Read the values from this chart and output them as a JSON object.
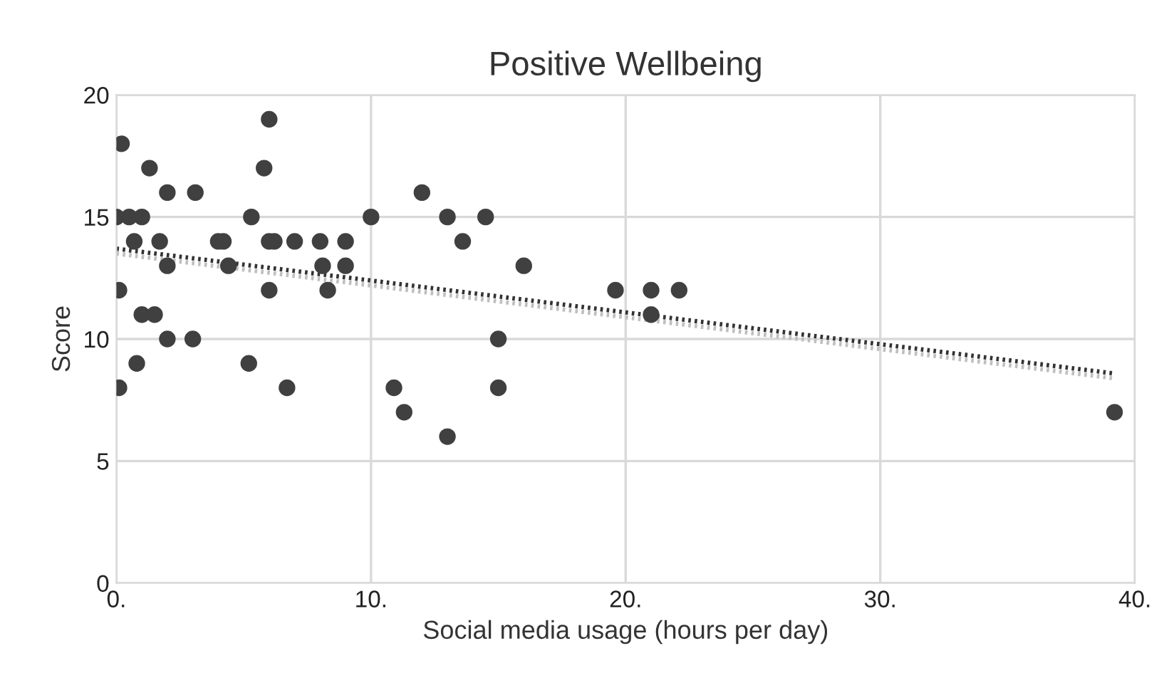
{
  "chart_data": {
    "type": "scatter",
    "title": "Positive Wellbeing",
    "xlabel": "Social media usage (hours per day)",
    "ylabel": "Score",
    "xlim": [
      0,
      40
    ],
    "ylim": [
      0,
      20
    ],
    "xticks": [
      {
        "value": 0,
        "label": "0."
      },
      {
        "value": 10,
        "label": "10."
      },
      {
        "value": 20,
        "label": "20."
      },
      {
        "value": 30,
        "label": "30."
      },
      {
        "value": 40,
        "label": "40."
      }
    ],
    "yticks": [
      0,
      5,
      10,
      15,
      20
    ],
    "grid": true,
    "legend": false,
    "marker": "circle",
    "series": [
      {
        "color": "#404040",
        "x": [
          0.2,
          1.3,
          2.0,
          3.1,
          0.0,
          0.5,
          1.0,
          5.3,
          10.0,
          0.7,
          1.7,
          4.0,
          4.2,
          6.0,
          6.2,
          7.0,
          8.0,
          9.0,
          5.8,
          6.0,
          2.0,
          4.4,
          8.1,
          9.0,
          0.1,
          6.0,
          8.3,
          1.0,
          1.5,
          2.0,
          3.0,
          0.8,
          5.2,
          0.1,
          6.7,
          10.9,
          12.0,
          13.0,
          14.5,
          13.6,
          16.0,
          19.6,
          21.0,
          22.1,
          21.0,
          15.0,
          15.0,
          11.3,
          13.0,
          39.2
        ],
        "values": [
          18,
          17,
          16,
          16,
          15,
          15,
          15,
          15,
          15,
          14,
          14,
          14,
          14,
          14,
          14,
          14,
          14,
          14,
          17,
          19,
          13,
          13,
          13,
          13,
          12,
          12,
          12,
          11,
          11,
          10,
          10,
          9,
          9,
          8,
          8,
          8,
          16,
          15,
          15,
          14,
          13,
          12,
          12,
          12,
          11,
          10,
          8,
          7,
          6,
          7
        ]
      },
      {
        "type": "line",
        "color": "#bfbfbf",
        "line_style": "dotted",
        "marker": "none",
        "x": [
          0,
          39.1
        ],
        "values": [
          13.5,
          8.4
        ]
      },
      {
        "type": "line",
        "color": "#333333",
        "line_style": "dotted",
        "marker": "none",
        "x": [
          0,
          39.1
        ],
        "values": [
          13.7,
          8.6
        ]
      }
    ]
  }
}
